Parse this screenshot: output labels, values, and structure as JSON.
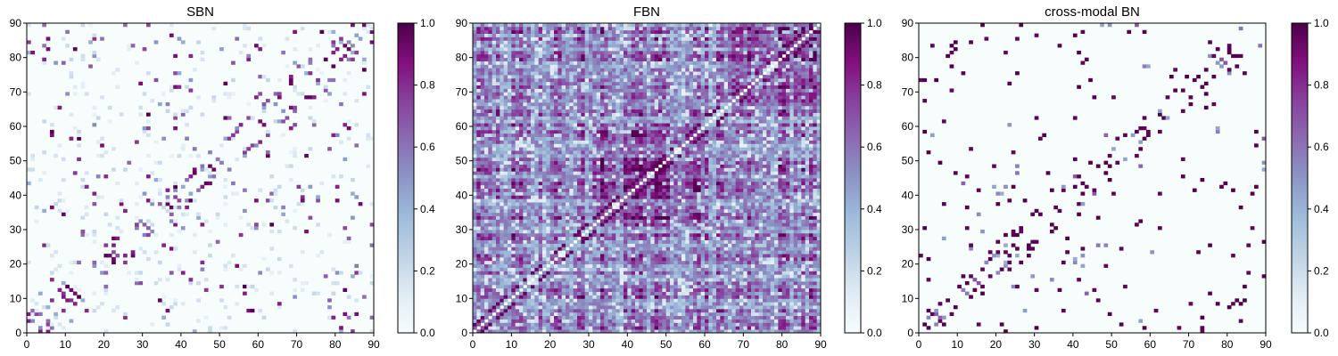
{
  "figure": {
    "colormap": [
      "#f7fcfd",
      "#e0ecf4",
      "#bfd3e6",
      "#9ebcda",
      "#8c96c6",
      "#8c6bb1",
      "#88419d",
      "#810f7c",
      "#4d004b"
    ],
    "colorbar_ticks": [
      "0.0",
      "0.2",
      "0.4",
      "0.6",
      "0.8",
      "1.0"
    ]
  },
  "chart_data": [
    {
      "type": "heatmap",
      "title": "SBN",
      "xlabel": "",
      "ylabel": "",
      "xlim": [
        0,
        90
      ],
      "ylim": [
        0,
        90
      ],
      "xticks": [
        "0",
        "10",
        "20",
        "30",
        "40",
        "50",
        "60",
        "70",
        "80",
        "90"
      ],
      "yticks": [
        "0",
        "10",
        "20",
        "30",
        "40",
        "50",
        "60",
        "70",
        "80",
        "90"
      ],
      "colorbar_range": [
        0,
        1
      ],
      "size": 90,
      "pattern": "structural",
      "description_of_values": "90x90 symmetric matrix, values 0 to 1, mostly near 0 with sparse strong connections"
    },
    {
      "type": "heatmap",
      "title": "FBN",
      "xlabel": "",
      "ylabel": "",
      "xlim": [
        0,
        90
      ],
      "ylim": [
        0,
        90
      ],
      "xticks": [
        "0",
        "10",
        "20",
        "30",
        "40",
        "50",
        "60",
        "70",
        "80",
        "90"
      ],
      "yticks": [
        "0",
        "10",
        "20",
        "30",
        "40",
        "50",
        "60",
        "70",
        "80",
        "90"
      ],
      "colorbar_range": [
        0,
        1
      ],
      "size": 90,
      "pattern": "functional",
      "description_of_values": "90x90 symmetric matrix, values 0 to 1, dense with many medium-to-strong connections"
    },
    {
      "type": "heatmap",
      "title": "cross-modal BN",
      "xlabel": "",
      "ylabel": "",
      "xlim": [
        0,
        90
      ],
      "ylim": [
        0,
        90
      ],
      "xticks": [
        "0",
        "10",
        "20",
        "30",
        "40",
        "50",
        "60",
        "70",
        "80",
        "90"
      ],
      "yticks": [
        "0",
        "10",
        "20",
        "30",
        "40",
        "50",
        "60",
        "70",
        "80",
        "90"
      ],
      "colorbar_range": [
        0,
        1
      ],
      "size": 90,
      "pattern": "cross",
      "description_of_values": "90x90 symmetric matrix, values 0 to 1, mostly 0 with sparse strong (near 1) connections"
    }
  ]
}
